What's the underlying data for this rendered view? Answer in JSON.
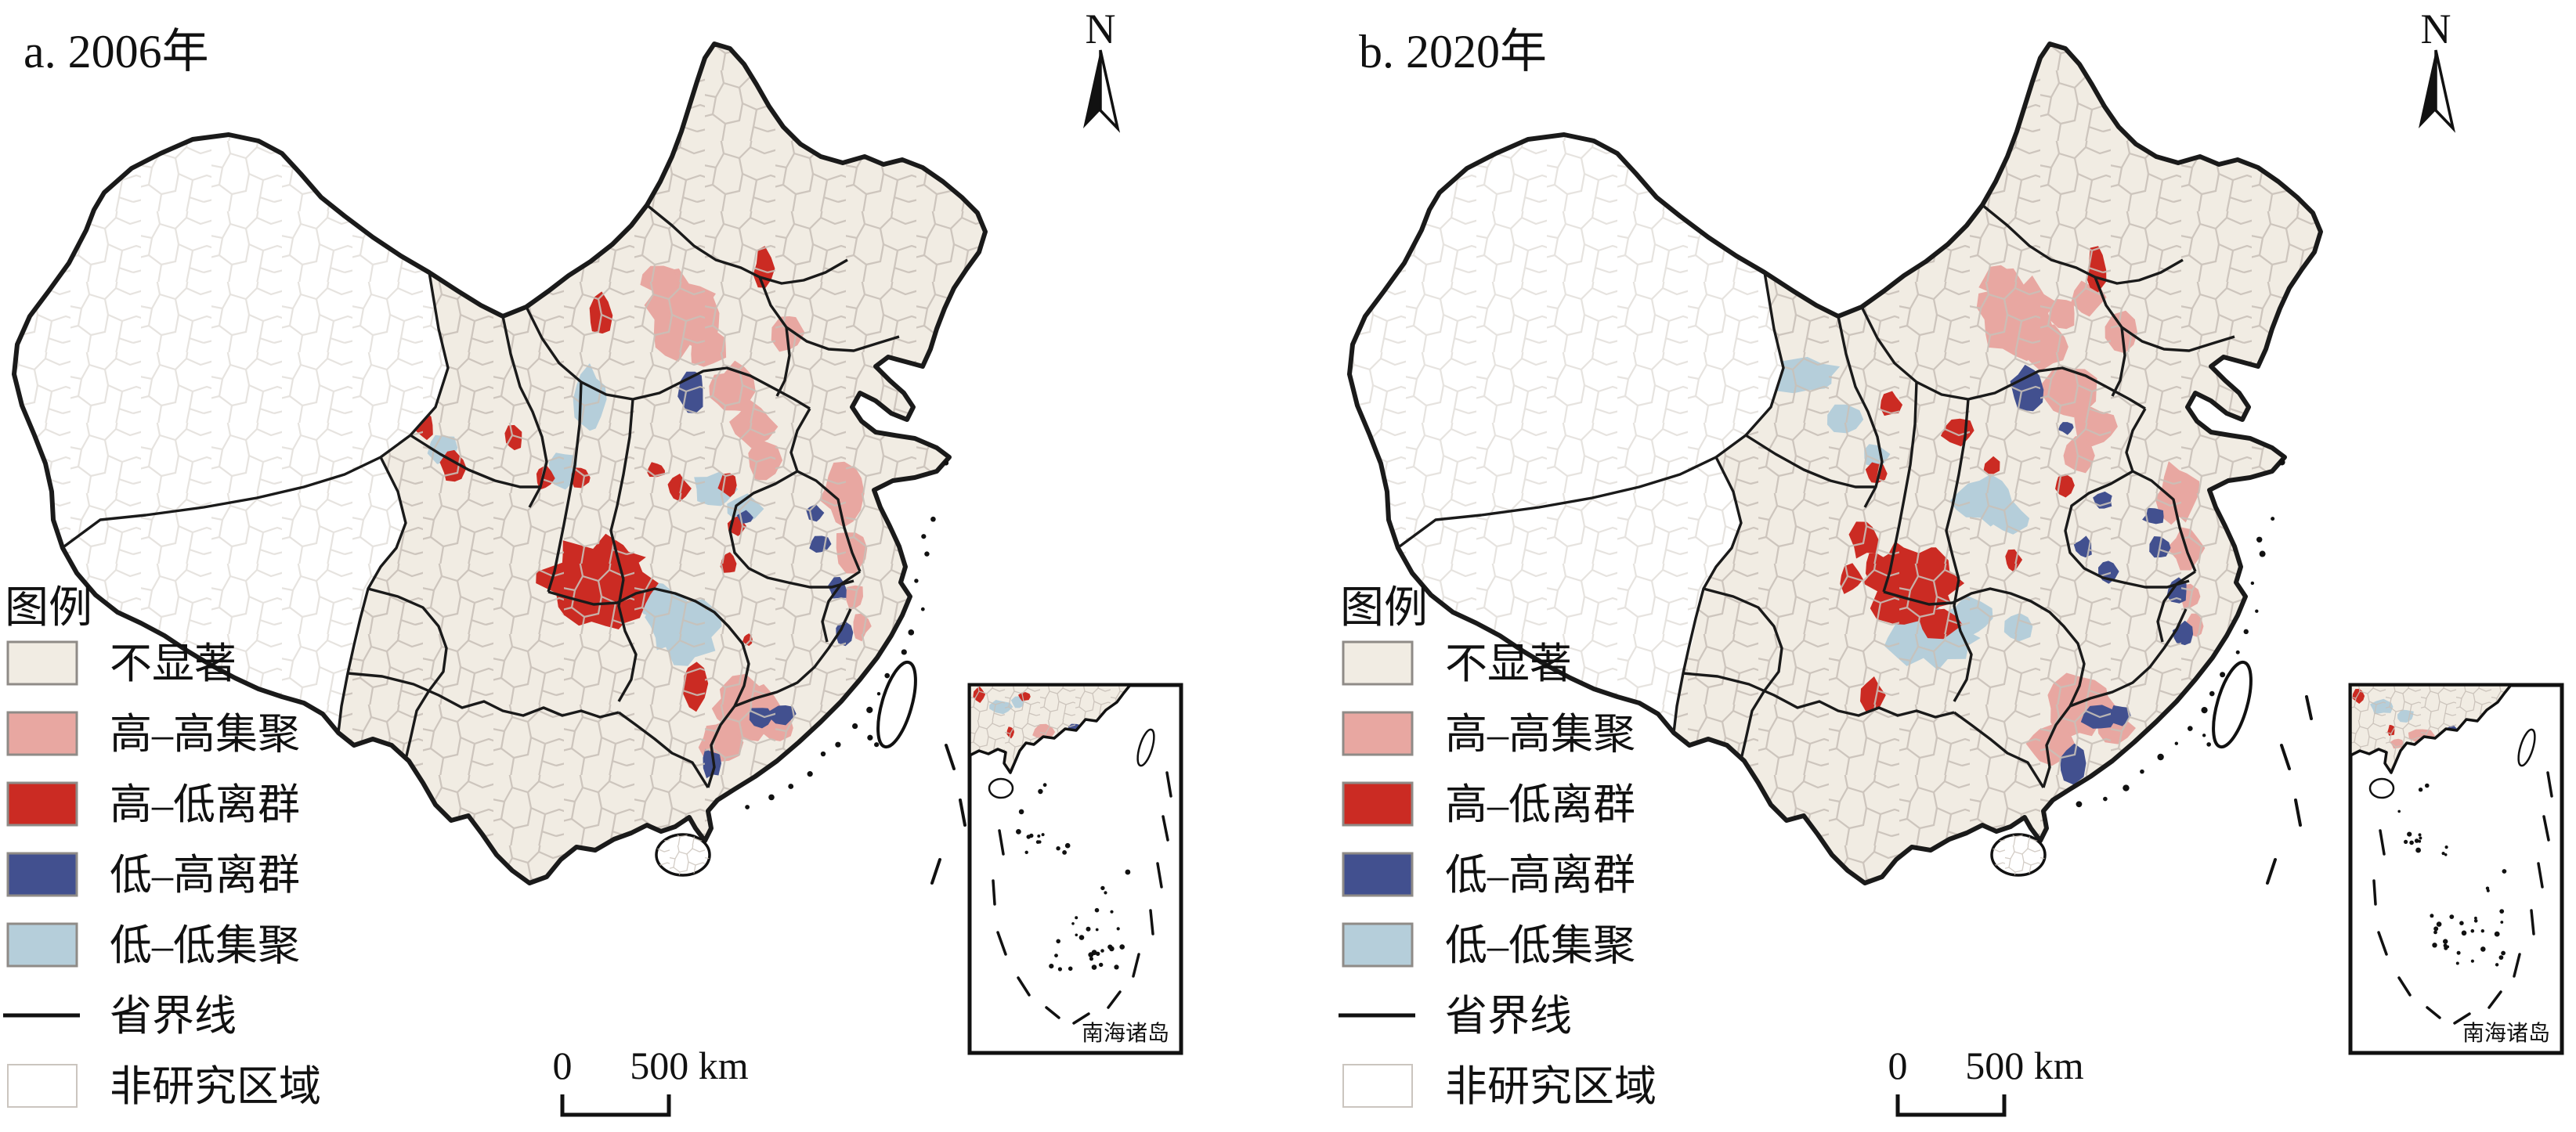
{
  "colors": {
    "not_significant": "#F1ECE3",
    "high_high": "#E8A7A1",
    "high_low": "#CB2B23",
    "low_high": "#42508F",
    "low_low": "#B5CEDA",
    "province_line": "#1A1A1A",
    "prefecture_line": "#C8C0B8",
    "non_study": "#FFFFFF",
    "swatch_border": "#8F8B87"
  },
  "legend": {
    "title": "图例",
    "items": [
      {
        "key": "ns",
        "label": "不显著",
        "swatch": "fill"
      },
      {
        "key": "hh",
        "label": "高–高集聚",
        "swatch": "fill"
      },
      {
        "key": "hl",
        "label": "高–低离群",
        "swatch": "fill"
      },
      {
        "key": "lh",
        "label": "低–高离群",
        "swatch": "fill"
      },
      {
        "key": "ll",
        "label": "低–低集聚",
        "swatch": "fill"
      },
      {
        "key": "boundary",
        "label": "省界线",
        "swatch": "line"
      },
      {
        "key": "nonstudy",
        "label": "非研究区域",
        "swatch": "empty"
      }
    ]
  },
  "panels": [
    {
      "id": "a",
      "title": "a. 2006年",
      "north_label": "N",
      "scale_zero": "0",
      "scale_label": "500 km",
      "inset_label": "南海诸岛",
      "clusters": {
        "hh": [
          [
            870,
            400,
            45,
            52
          ],
          [
            843,
            357,
            24,
            18
          ],
          [
            902,
            443,
            26,
            28
          ],
          [
            1005,
            425,
            20,
            25
          ],
          [
            935,
            500,
            30,
            33
          ],
          [
            962,
            545,
            26,
            28
          ],
          [
            975,
            588,
            20,
            26
          ],
          [
            1075,
            630,
            26,
            38
          ],
          [
            1086,
            700,
            20,
            28
          ],
          [
            1090,
            762,
            13,
            18
          ],
          [
            1098,
            800,
            12,
            16
          ],
          [
            952,
            905,
            40,
            38
          ],
          [
            918,
            948,
            28,
            28
          ],
          [
            993,
            930,
            22,
            17
          ]
        ],
        "hl": [
          [
            975,
            343,
            12,
            26
          ],
          [
            766,
            403,
            17,
            30
          ],
          [
            543,
            543,
            13,
            17
          ],
          [
            578,
            598,
            15,
            20
          ],
          [
            655,
            560,
            13,
            16
          ],
          [
            695,
            611,
            13,
            15
          ],
          [
            740,
            610,
            13,
            13
          ],
          [
            837,
            601,
            13,
            10
          ],
          [
            866,
            624,
            14,
            16
          ],
          [
            930,
            620,
            12,
            15
          ],
          [
            940,
            672,
            11,
            14
          ],
          [
            930,
            720,
            10,
            13
          ],
          [
            765,
            745,
            72,
            58
          ],
          [
            887,
            873,
            15,
            30
          ],
          [
            955,
            817,
            6,
            9
          ]
        ],
        "lh": [
          [
            295,
            285,
            18,
            26
          ],
          [
            885,
            498,
            17,
            30
          ],
          [
            951,
            661,
            9,
            9
          ],
          [
            1040,
            655,
            12,
            10
          ],
          [
            1047,
            695,
            12,
            13
          ],
          [
            1070,
            753,
            12,
            15
          ],
          [
            1077,
            808,
            12,
            15
          ],
          [
            970,
            915,
            19,
            15
          ],
          [
            1000,
            912,
            16,
            13
          ],
          [
            908,
            975,
            13,
            20
          ]
        ],
        "ll": [
          [
            753,
            510,
            20,
            42
          ],
          [
            718,
            600,
            20,
            26
          ],
          [
            565,
            572,
            18,
            20
          ],
          [
            912,
            625,
            26,
            23
          ],
          [
            950,
            650,
            23,
            18
          ],
          [
            870,
            800,
            46,
            42
          ],
          [
            838,
            768,
            26,
            23
          ]
        ]
      },
      "inset_clusters": {
        "hh": [
          [
            95,
            60,
            14,
            10
          ],
          [
            115,
            75,
            10,
            8
          ]
        ],
        "hl": [
          [
            12,
            12,
            7,
            9
          ],
          [
            70,
            15,
            7,
            6
          ],
          [
            52,
            60,
            5,
            7
          ]
        ],
        "lh": [
          [
            135,
            55,
            8,
            7
          ],
          [
            150,
            70,
            8,
            6
          ],
          [
            80,
            80,
            7,
            6
          ]
        ],
        "ll": [
          [
            40,
            28,
            14,
            9
          ],
          [
            62,
            22,
            9,
            7
          ]
        ]
      }
    },
    {
      "id": "b",
      "title": "b. 2020年",
      "north_label": "N",
      "scale_zero": "0",
      "scale_label": "500 km",
      "inset_label": "南海诸岛",
      "clusters": {
        "hh": [
          [
            870,
            400,
            45,
            52
          ],
          [
            845,
            360,
            24,
            18
          ],
          [
            905,
            443,
            26,
            28
          ],
          [
            930,
            400,
            18,
            20
          ],
          [
            1005,
            425,
            20,
            25
          ],
          [
            960,
            380,
            20,
            22
          ],
          [
            938,
            500,
            32,
            34
          ],
          [
            965,
            545,
            28,
            30
          ],
          [
            950,
            582,
            22,
            26
          ],
          [
            1075,
            630,
            26,
            38
          ],
          [
            1086,
            700,
            20,
            28
          ],
          [
            1090,
            762,
            13,
            18
          ],
          [
            1098,
            800,
            12,
            16
          ],
          [
            950,
            905,
            42,
            40
          ],
          [
            915,
            950,
            29,
            29
          ],
          [
            995,
            930,
            23,
            18
          ]
        ],
        "hl": [
          [
            972,
            345,
            14,
            27
          ],
          [
            708,
            517,
            14,
            16
          ],
          [
            690,
            605,
            13,
            15
          ],
          [
            795,
            550,
            19,
            17
          ],
          [
            838,
            596,
            11,
            11
          ],
          [
            865,
            715,
            11,
            14
          ],
          [
            675,
            690,
            18,
            22
          ],
          [
            658,
            740,
            15,
            18
          ],
          [
            690,
            725,
            16,
            18
          ],
          [
            735,
            745,
            58,
            50
          ],
          [
            772,
            798,
            26,
            20
          ],
          [
            930,
            620,
            12,
            15
          ],
          [
            685,
            888,
            15,
            22
          ]
        ],
        "lh": [
          [
            883,
            498,
            21,
            34
          ],
          [
            933,
            546,
            9,
            8
          ],
          [
            980,
            640,
            13,
            11
          ],
          [
            956,
            700,
            12,
            14
          ],
          [
            985,
            730,
            14,
            15
          ],
          [
            1045,
            660,
            13,
            11
          ],
          [
            1052,
            700,
            13,
            15
          ],
          [
            1075,
            755,
            14,
            16
          ],
          [
            1082,
            810,
            13,
            15
          ],
          [
            975,
            918,
            20,
            16
          ],
          [
            1002,
            914,
            16,
            13
          ],
          [
            940,
            975,
            18,
            24
          ]
        ],
        "ll": [
          [
            585,
            480,
            52,
            26
          ],
          [
            648,
            536,
            24,
            18
          ],
          [
            688,
            580,
            17,
            15
          ],
          [
            830,
            640,
            38,
            30
          ],
          [
            862,
            662,
            24,
            18
          ],
          [
            760,
            815,
            55,
            35
          ],
          [
            810,
            790,
            30,
            25
          ],
          [
            870,
            800,
            20,
            18
          ]
        ]
      },
      "inset_clusters": {
        "hh": [
          [
            90,
            65,
            15,
            11
          ],
          [
            120,
            80,
            10,
            8
          ],
          [
            60,
            75,
            9,
            7
          ]
        ],
        "hl": [
          [
            10,
            14,
            7,
            9
          ],
          [
            52,
            58,
            5,
            7
          ]
        ],
        "lh": [
          [
            130,
            60,
            9,
            8
          ],
          [
            115,
            90,
            8,
            7
          ],
          [
            145,
            72,
            8,
            6
          ]
        ],
        "ll": [
          [
            40,
            28,
            16,
            10
          ],
          [
            70,
            40,
            12,
            8
          ]
        ]
      }
    }
  ]
}
